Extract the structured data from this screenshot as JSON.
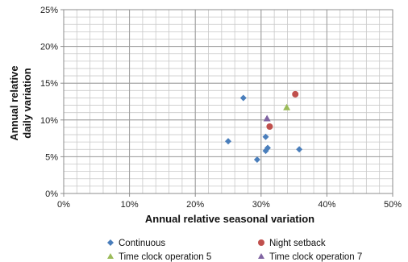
{
  "chart_data": {
    "type": "scatter",
    "xlabel": "Annual relative seasonal variation",
    "ylabel_lines": [
      "Annual relative",
      "daily variation"
    ],
    "xlim": [
      0,
      50
    ],
    "ylim": [
      0,
      25
    ],
    "x_ticks": [
      0,
      10,
      20,
      30,
      40,
      50
    ],
    "y_ticks": [
      0,
      5,
      10,
      15,
      20,
      25
    ],
    "x_tick_labels": [
      "0%",
      "10%",
      "20%",
      "30%",
      "40%",
      "50%"
    ],
    "y_tick_labels": [
      "0%",
      "5%",
      "10%",
      "15%",
      "20%",
      "25%"
    ],
    "grid": true,
    "legend_position": "bottom",
    "series": [
      {
        "name": "Continuous",
        "marker": "diamond",
        "color": "#4a7ebb",
        "points": [
          {
            "x": 27.3,
            "y": 13.0
          },
          {
            "x": 25.0,
            "y": 7.1
          },
          {
            "x": 29.4,
            "y": 4.6
          },
          {
            "x": 30.7,
            "y": 7.7
          },
          {
            "x": 30.7,
            "y": 5.8
          },
          {
            "x": 31.0,
            "y": 6.2
          },
          {
            "x": 35.8,
            "y": 6.0
          }
        ]
      },
      {
        "name": "Night setback",
        "marker": "circle",
        "color": "#c0504d",
        "points": [
          {
            "x": 35.2,
            "y": 13.5
          },
          {
            "x": 31.3,
            "y": 9.1
          }
        ]
      },
      {
        "name": "Time clock operation 5",
        "marker": "triangle",
        "color": "#9bbb59",
        "points": [
          {
            "x": 33.9,
            "y": 11.7
          }
        ]
      },
      {
        "name": "Time clock operation 7",
        "marker": "triangle",
        "color": "#8064a2",
        "points": [
          {
            "x": 30.9,
            "y": 10.2
          }
        ]
      }
    ]
  }
}
